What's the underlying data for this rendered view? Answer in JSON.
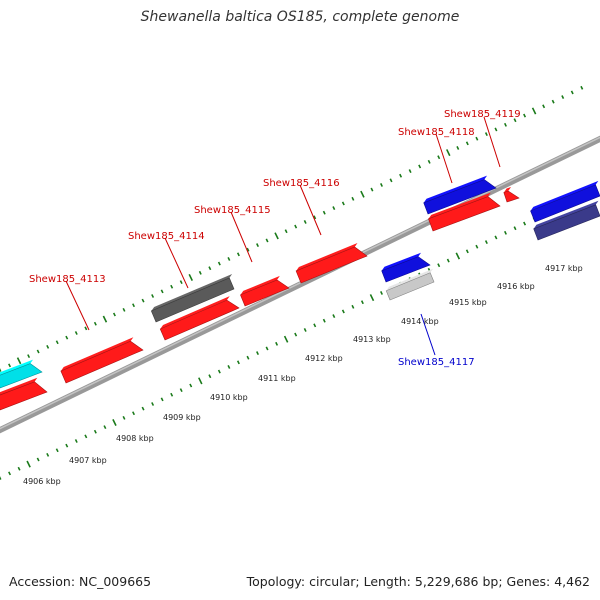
{
  "title": "Shewanella baltica OS185, complete genome",
  "footer": {
    "accession": "Accession: NC_009665",
    "summary": "Topology: circular; Length: 5,229,686 bp; Genes: 4,462"
  },
  "colors": {
    "backbone": "#888888",
    "tick": "#1a7a1a",
    "label_forward": "#cc0000",
    "label_reverse": "#0000cc",
    "red": "#ff1a1a",
    "blue": "#1010dd",
    "navy": "#3a3a8a",
    "cyan": "#00e0e8",
    "darkgray": "#5a5a5a",
    "lightgray": "#c8c8c8"
  },
  "tick_labels": [
    "4906 kbp",
    "4907 kbp",
    "4908 kbp",
    "4909 kbp",
    "4910 kbp",
    "4911 kbp",
    "4912 kbp",
    "4913 kbp",
    "4914 kbp",
    "4915 kbp",
    "4916 kbp",
    "4917 kbp"
  ],
  "gene_labels": [
    {
      "name": "Shew185_4113",
      "strand": "forward"
    },
    {
      "name": "Shew185_4114",
      "strand": "forward"
    },
    {
      "name": "Shew185_4115",
      "strand": "forward"
    },
    {
      "name": "Shew185_4116",
      "strand": "forward"
    },
    {
      "name": "Shew185_4117",
      "strand": "reverse"
    },
    {
      "name": "Shew185_4118",
      "strand": "forward"
    },
    {
      "name": "Shew185_4119",
      "strand": "forward"
    }
  ]
}
